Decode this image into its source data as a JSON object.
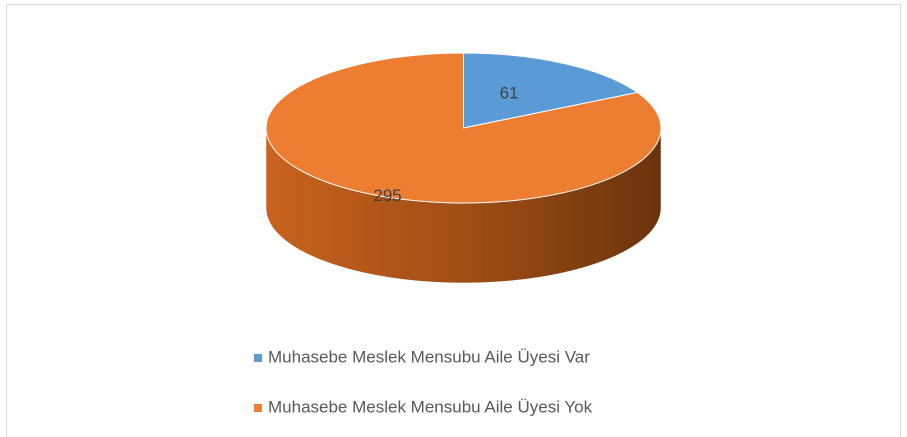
{
  "chart_data": {
    "type": "pie3d",
    "categories": [
      "Muhasebe Meslek Mensubu Aile Üyesi Var",
      "Muhasebe Meslek Mensubu Aile Üyesi Yok"
    ],
    "values": [
      61,
      295
    ],
    "colors": [
      "#5b9bd5",
      "#ed7d31"
    ],
    "legend": "bottom"
  }
}
